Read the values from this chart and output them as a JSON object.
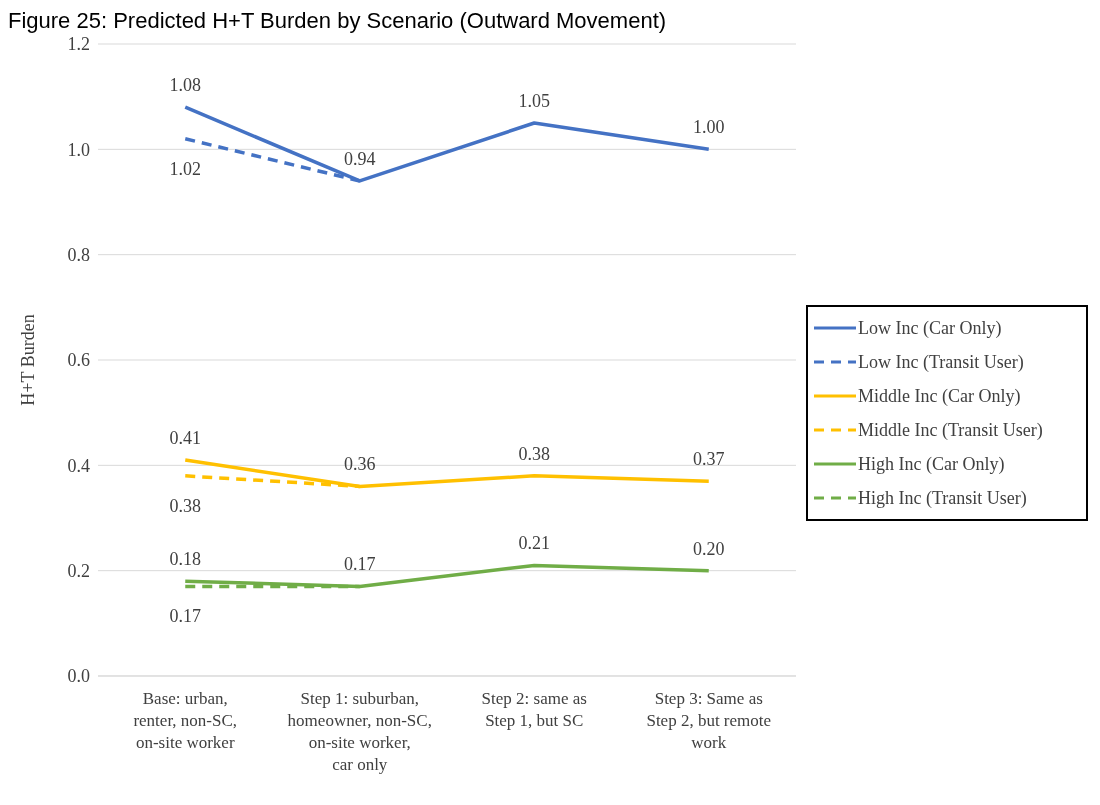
{
  "chart_data": {
    "type": "line",
    "title": "Figure 25: Predicted H+T Burden by Scenario (Outward Movement)",
    "ylabel": "H+T Burden",
    "categories": [
      "Base:  urban, renter, non-SC, on-site worker",
      "Step 1:  suburban, homeowner, non-SC, on-site worker, car only",
      "Step 2:  same as Step 1, but SC",
      "Step 3:  Same as Step 2, but remote work"
    ],
    "series": [
      {
        "name": "Low Inc (Car Only)",
        "color": "#4472c4",
        "line_style": "solid",
        "values": [
          1.08,
          0.94,
          1.05,
          1.0
        ],
        "value_labels": [
          "1.08",
          "0.94",
          "1.05",
          "1.00"
        ]
      },
      {
        "name": "Low Inc (Transit User)",
        "color": "#4472c4",
        "line_style": "dashed",
        "values": [
          1.02,
          0.94,
          null,
          null
        ],
        "value_labels": [
          "1.02",
          null,
          null,
          null
        ]
      },
      {
        "name": "Middle Inc (Car Only)",
        "color": "#ffc000",
        "line_style": "solid",
        "values": [
          0.41,
          0.36,
          0.38,
          0.37
        ],
        "value_labels": [
          "0.41",
          "0.36",
          "0.38",
          "0.37"
        ]
      },
      {
        "name": "Middle Inc (Transit User)",
        "color": "#ffc000",
        "line_style": "dashed",
        "values": [
          0.38,
          0.36,
          null,
          null
        ],
        "value_labels": [
          "0.38",
          null,
          null,
          null
        ]
      },
      {
        "name": "High Inc (Car Only)",
        "color": "#70ad47",
        "line_style": "solid",
        "values": [
          0.18,
          0.17,
          0.21,
          0.2
        ],
        "value_labels": [
          "0.18",
          "0.17",
          "0.21",
          "0.20"
        ]
      },
      {
        "name": "High Inc (Transit User)",
        "color": "#70ad47",
        "line_style": "dashed",
        "values": [
          0.17,
          0.17,
          null,
          null
        ],
        "value_labels": [
          "0.17",
          null,
          null,
          null
        ]
      }
    ],
    "ylim": [
      0,
      1.2
    ],
    "yticks": [
      {
        "value": 0,
        "label": "0.0"
      },
      {
        "value": 0.2,
        "label": "0.2"
      },
      {
        "value": 0.4,
        "label": "0.4"
      },
      {
        "value": 0.6,
        "label": "0.6"
      },
      {
        "value": 0.8,
        "label": "0.8"
      },
      {
        "value": 1.0,
        "label": "1.0"
      },
      {
        "value": 1.2,
        "label": "1.2"
      }
    ],
    "grid": "y",
    "legend": "right",
    "marker": "none"
  }
}
